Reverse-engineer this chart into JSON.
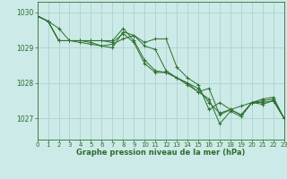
{
  "title": "Graphe pression niveau de la mer (hPa)",
  "bg_color": "#cceae7",
  "grid_color": "#aad4d0",
  "line_color": "#2d6e2d",
  "yticks": [
    1027,
    1028,
    1029,
    1030
  ],
  "xticks": [
    0,
    1,
    2,
    3,
    4,
    5,
    6,
    7,
    8,
    9,
    10,
    11,
    12,
    13,
    14,
    15,
    16,
    17,
    18,
    19,
    20,
    21,
    22,
    23
  ],
  "ylim": [
    1026.4,
    1030.3
  ],
  "xlim": [
    0,
    23
  ],
  "series": [
    [
      1029.9,
      1029.75,
      1029.55,
      1029.2,
      1029.2,
      1029.15,
      1029.05,
      1029.0,
      1029.45,
      1029.35,
      1029.05,
      1028.95,
      1028.35,
      1028.15,
      1028.0,
      1027.85,
      1027.45,
      1027.15,
      1027.25,
      1027.35,
      1027.45,
      1027.4,
      1027.5,
      1027.0
    ],
    [
      1029.9,
      1029.75,
      1029.2,
      1029.2,
      1029.15,
      1029.1,
      1029.05,
      1029.1,
      1029.25,
      1029.35,
      1029.15,
      1029.25,
      1029.25,
      1028.45,
      1028.15,
      1027.95,
      1027.25,
      1027.45,
      1027.25,
      1027.1,
      1027.45,
      1027.45,
      1027.5,
      1027.0
    ],
    [
      1029.9,
      1029.75,
      1029.2,
      1029.2,
      1029.2,
      1029.2,
      1029.2,
      1029.15,
      1029.4,
      1029.15,
      1028.55,
      1028.3,
      1028.3,
      1028.15,
      1027.95,
      1027.75,
      1027.55,
      1026.85,
      1027.2,
      1027.05,
      1027.45,
      1027.5,
      1027.55,
      1027.0
    ],
    [
      1029.9,
      1029.75,
      1029.2,
      1029.2,
      1029.2,
      1029.2,
      1029.2,
      1029.2,
      1029.55,
      1029.2,
      1028.65,
      1028.35,
      1028.3,
      1028.15,
      1028.0,
      1027.75,
      1027.85,
      1027.1,
      1027.25,
      1027.1,
      1027.45,
      1027.55,
      1027.6,
      1027.0
    ]
  ]
}
